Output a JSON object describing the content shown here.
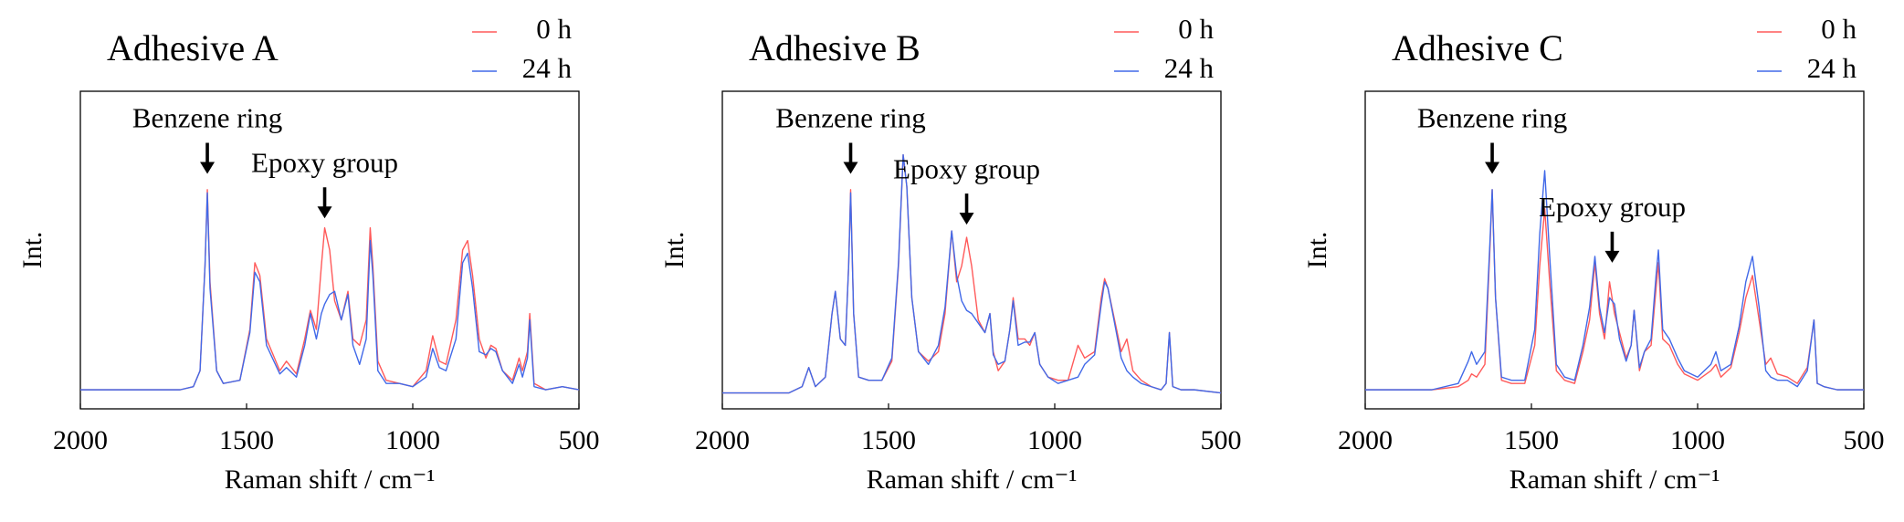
{
  "chart_data": [
    {
      "type": "line",
      "title": "Adhesive A",
      "xlabel": "Raman shift / cm⁻¹",
      "ylabel": "Int.",
      "xlim": [
        2000,
        500
      ],
      "xticks": [
        2000,
        1500,
        1000,
        500
      ],
      "ylim": [
        0,
        100
      ],
      "legend": "upper right",
      "x": [
        2000,
        1800,
        1700,
        1660,
        1640,
        1625,
        1618,
        1610,
        1590,
        1570,
        1520,
        1490,
        1475,
        1460,
        1440,
        1400,
        1380,
        1350,
        1325,
        1308,
        1290,
        1275,
        1265,
        1250,
        1235,
        1215,
        1195,
        1180,
        1160,
        1140,
        1128,
        1120,
        1105,
        1080,
        1040,
        1000,
        960,
        940,
        920,
        900,
        870,
        850,
        835,
        820,
        800,
        780,
        765,
        750,
        730,
        700,
        680,
        670,
        655,
        648,
        635,
        600,
        550,
        500
      ],
      "series": [
        {
          "name": "0 h",
          "color": "#ff5a5a",
          "values": [
            6,
            6,
            6,
            7,
            12,
            45,
            69,
            40,
            12,
            8,
            9,
            25,
            46,
            42,
            22,
            12,
            15,
            11,
            22,
            31,
            25,
            45,
            57,
            50,
            34,
            28,
            37,
            22,
            20,
            28,
            57,
            45,
            15,
            9,
            8,
            7,
            12,
            23,
            15,
            14,
            28,
            50,
            53,
            42,
            22,
            16,
            20,
            19,
            12,
            9,
            16,
            12,
            18,
            30,
            8,
            6,
            7,
            6
          ]
        },
        {
          "name": "24 h",
          "color": "#4169e8",
          "values": [
            6,
            6,
            6,
            7,
            12,
            45,
            68,
            38,
            12,
            8,
            9,
            24,
            43,
            40,
            20,
            11,
            13,
            10,
            20,
            30,
            22,
            30,
            33,
            36,
            37,
            28,
            36,
            20,
            14,
            22,
            53,
            42,
            12,
            8,
            8,
            7,
            10,
            19,
            13,
            12,
            22,
            46,
            49,
            38,
            18,
            17,
            19,
            18,
            12,
            8,
            14,
            10,
            16,
            28,
            7,
            6,
            7,
            6
          ]
        }
      ],
      "annotations": [
        {
          "text": "Benzene ring",
          "x": 1618,
          "y": 74
        },
        {
          "text": "Epoxy group",
          "x": 1265,
          "y": 60
        }
      ]
    },
    {
      "type": "line",
      "title": "Adhesive B",
      "xlabel": "Raman shift / cm⁻¹",
      "ylabel": "Int.",
      "xlim": [
        2000,
        500
      ],
      "xticks": [
        2000,
        1500,
        1000,
        500
      ],
      "ylim": [
        0,
        100
      ],
      "legend": "upper right",
      "x": [
        2000,
        1900,
        1800,
        1760,
        1740,
        1720,
        1690,
        1670,
        1660,
        1645,
        1630,
        1620,
        1614,
        1605,
        1590,
        1560,
        1520,
        1490,
        1470,
        1456,
        1445,
        1430,
        1410,
        1380,
        1350,
        1330,
        1310,
        1295,
        1280,
        1265,
        1250,
        1230,
        1210,
        1195,
        1185,
        1170,
        1150,
        1135,
        1125,
        1110,
        1090,
        1075,
        1060,
        1045,
        1020,
        990,
        960,
        930,
        910,
        880,
        860,
        850,
        840,
        820,
        800,
        783,
        765,
        740,
        710,
        680,
        665,
        655,
        645,
        620,
        580,
        500
      ],
      "series": [
        {
          "name": "0 h",
          "color": "#ff5a5a",
          "values": [
            5,
            5,
            5,
            7,
            13,
            7,
            10,
            30,
            37,
            22,
            20,
            45,
            69,
            30,
            10,
            9,
            9,
            15,
            45,
            80,
            70,
            35,
            18,
            15,
            18,
            30,
            56,
            40,
            45,
            54,
            45,
            28,
            24,
            30,
            18,
            12,
            15,
            25,
            35,
            22,
            22,
            20,
            24,
            14,
            10,
            9,
            9,
            20,
            16,
            18,
            35,
            41,
            38,
            28,
            18,
            22,
            12,
            9,
            7,
            6,
            8,
            24,
            7,
            6,
            6,
            5
          ]
        },
        {
          "name": "24 h",
          "color": "#4169e8",
          "values": [
            5,
            5,
            5,
            7,
            13,
            7,
            10,
            30,
            37,
            22,
            20,
            45,
            68,
            30,
            10,
            9,
            9,
            16,
            46,
            80,
            70,
            35,
            18,
            14,
            20,
            32,
            56,
            42,
            34,
            31,
            30,
            27,
            24,
            30,
            17,
            14,
            15,
            25,
            34,
            20,
            21,
            21,
            24,
            14,
            10,
            8,
            9,
            10,
            14,
            17,
            33,
            40,
            38,
            27,
            16,
            12,
            10,
            8,
            7,
            6,
            8,
            24,
            7,
            6,
            6,
            5
          ]
        }
      ],
      "annotations": [
        {
          "text": "Benzene ring",
          "x": 1614,
          "y": 74
        },
        {
          "text": "Epoxy group",
          "x": 1265,
          "y": 58
        }
      ]
    },
    {
      "type": "line",
      "title": "Adhesive C",
      "xlabel": "Raman shift / cm⁻¹",
      "ylabel": "Int.",
      "xlim": [
        2000,
        500
      ],
      "xticks": [
        2000,
        1500,
        1000,
        500
      ],
      "ylim": [
        0,
        100
      ],
      "legend": "upper right",
      "x": [
        2000,
        1900,
        1800,
        1720,
        1690,
        1680,
        1665,
        1640,
        1625,
        1618,
        1608,
        1590,
        1560,
        1520,
        1490,
        1475,
        1460,
        1445,
        1425,
        1400,
        1370,
        1345,
        1325,
        1309,
        1295,
        1280,
        1265,
        1250,
        1235,
        1215,
        1200,
        1191,
        1175,
        1160,
        1140,
        1125,
        1118,
        1105,
        1085,
        1060,
        1040,
        1000,
        960,
        945,
        930,
        900,
        875,
        855,
        835,
        815,
        795,
        780,
        760,
        730,
        700,
        670,
        650,
        640,
        620,
        580,
        500
      ],
      "series": [
        {
          "name": "0 h",
          "color": "#ff5a5a",
          "values": [
            6,
            6,
            6,
            7,
            9,
            11,
            10,
            14,
            50,
            69,
            35,
            9,
            8,
            8,
            20,
            45,
            63,
            40,
            12,
            9,
            8,
            18,
            28,
            46,
            30,
            22,
            40,
            30,
            24,
            16,
            20,
            31,
            12,
            18,
            20,
            38,
            46,
            22,
            20,
            14,
            11,
            9,
            12,
            14,
            10,
            13,
            24,
            35,
            42,
            28,
            14,
            16,
            11,
            10,
            8,
            13,
            28,
            8,
            7,
            6,
            6
          ]
        },
        {
          "name": "24 h",
          "color": "#4169e8",
          "values": [
            6,
            6,
            6,
            8,
            15,
            18,
            14,
            18,
            52,
            69,
            35,
            10,
            9,
            9,
            25,
            55,
            75,
            48,
            14,
            10,
            9,
            20,
            32,
            48,
            32,
            24,
            35,
            33,
            22,
            15,
            20,
            31,
            13,
            18,
            22,
            42,
            50,
            25,
            22,
            16,
            12,
            10,
            14,
            18,
            12,
            14,
            26,
            40,
            48,
            32,
            12,
            10,
            9,
            9,
            7,
            12,
            28,
            8,
            7,
            6,
            6
          ]
        }
      ],
      "annotations": [
        {
          "text": "Benzene ring",
          "x": 1618,
          "y": 74
        },
        {
          "text": "Epoxy group",
          "x": 1257,
          "y": 46
        }
      ]
    }
  ]
}
